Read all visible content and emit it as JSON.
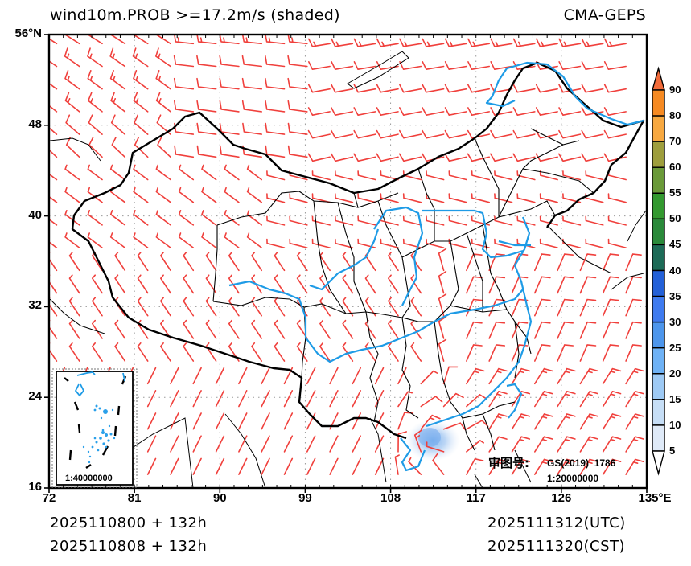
{
  "header": {
    "title": "wind10m.PROB >=17.2m/s (shaded)",
    "model": "CMA-GEPS"
  },
  "axes": {
    "y_ticks": [
      {
        "label": "56°N",
        "lat": 56
      },
      {
        "label": "48",
        "lat": 48
      },
      {
        "label": "40",
        "lat": 40
      },
      {
        "label": "32",
        "lat": 32
      },
      {
        "label": "24",
        "lat": 24
      },
      {
        "label": "16",
        "lat": 16
      }
    ],
    "x_ticks": [
      {
        "label": "72",
        "lon": 72
      },
      {
        "label": "81",
        "lon": 81
      },
      {
        "label": "90",
        "lon": 90
      },
      {
        "label": "99",
        "lon": 99
      },
      {
        "label": "108",
        "lon": 108
      },
      {
        "label": "117",
        "lon": 117
      },
      {
        "label": "126",
        "lon": 126
      },
      {
        "label": "135°E",
        "lon": 135
      }
    ],
    "lon_range": [
      72,
      135
    ],
    "lat_range": [
      16,
      56
    ]
  },
  "colorbar": {
    "levels": [
      "5",
      "10",
      "15",
      "20",
      "25",
      "30",
      "35",
      "40",
      "45",
      "50",
      "55",
      "60",
      "70",
      "80",
      "90"
    ],
    "colors": [
      "#ffffff",
      "#dfeaf8",
      "#c6def6",
      "#9ecaf5",
      "#6eb2f6",
      "#4d96ec",
      "#3f7bf0",
      "#2360d8",
      "#1d6b57",
      "#2a8a3a",
      "#33992f",
      "#6a9a38",
      "#9e9e3c",
      "#f7a840",
      "#f68a22",
      "#f26b3a"
    ]
  },
  "footer": {
    "init_utc": "2025110800 + 132h",
    "init_cst": "2025110808 + 132h",
    "valid_utc": "2025111312(UTC)",
    "valid_cst": "2025111320(CST)"
  },
  "annotations": {
    "approval_label": "审图号:",
    "approval_code": "GS(2019)  1786",
    "map_scale": "1:20000000",
    "inset_scale": "1:40000000"
  },
  "features": {
    "typhoon_center": {
      "lon": 112.5,
      "lat": 20.0,
      "max_prob_level": "15-20"
    },
    "wind_barb_color": "#f0403c",
    "river_color": "#1e9be6",
    "border_color": "#000000"
  }
}
